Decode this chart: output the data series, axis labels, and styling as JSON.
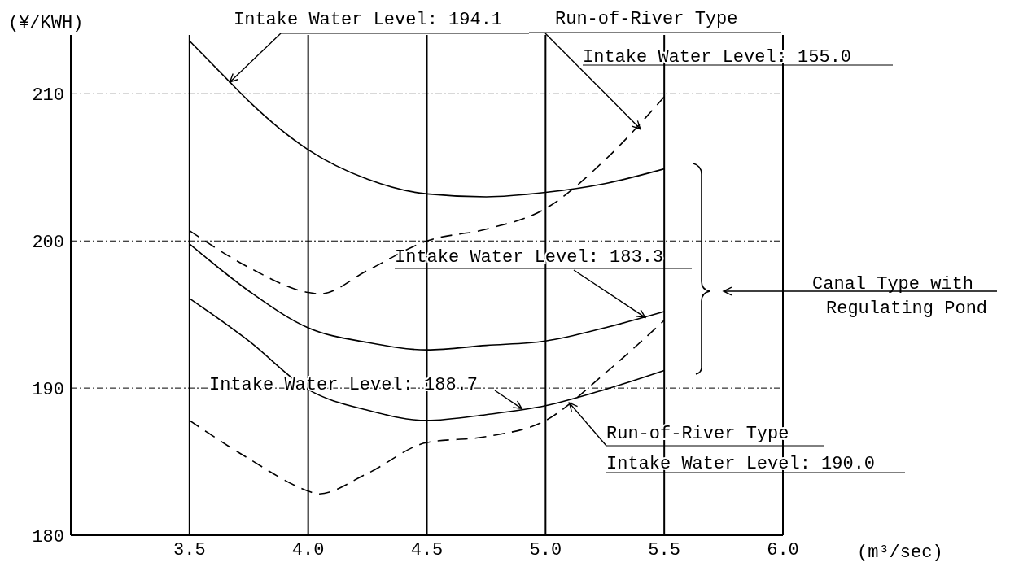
{
  "chart_data": {
    "type": "line",
    "xlabel": "(m³/sec)",
    "ylabel": "(¥/KWH)",
    "xlim": [
      3.0,
      6.0
    ],
    "ylim": [
      180,
      214
    ],
    "xticks": [
      3.5,
      {
        "value": 4,
        "label": "4.0"
      },
      4.5,
      {
        "value": 5,
        "label": "5.0"
      },
      5.5,
      {
        "value": 6,
        "label": "6.0"
      }
    ],
    "yticks": [
      180,
      190,
      200,
      210
    ],
    "grid": true,
    "marker": "none",
    "series": [
      {
        "color": "#000000",
        "line_style": "solid",
        "x": [
          3.5,
          3.67,
          3.75,
          4.0,
          4.25,
          4.5,
          4.75,
          5.0,
          5.25,
          5.5
        ],
        "values": [
          213.6,
          210.8,
          209.5,
          206.2,
          204.2,
          203.2,
          203.0,
          203.3,
          203.9,
          204.9
        ]
      },
      {
        "color": "#000000",
        "line_style": "dashed",
        "x": [
          3.5,
          3.75,
          4.0,
          4.05,
          4.25,
          4.5,
          4.75,
          5.0,
          5.25,
          5.5
        ],
        "values": [
          200.7,
          198.2,
          196.5,
          196.4,
          198.0,
          200.0,
          200.8,
          202.2,
          205.5,
          209.8
        ]
      },
      {
        "color": "#000000",
        "line_style": "solid",
        "x": [
          3.5,
          3.75,
          4.0,
          4.25,
          4.5,
          4.75,
          5.0,
          5.25,
          5.5
        ],
        "values": [
          199.8,
          196.6,
          194.1,
          193.1,
          192.6,
          192.9,
          193.2,
          194.1,
          195.2
        ]
      },
      {
        "color": "#000000",
        "line_style": "solid",
        "x": [
          3.5,
          3.75,
          4.0,
          4.25,
          4.5,
          4.75,
          5.0,
          5.25,
          5.5
        ],
        "values": [
          196.1,
          193.2,
          189.9,
          188.5,
          187.8,
          188.2,
          188.8,
          189.9,
          191.2
        ]
      },
      {
        "color": "#000000",
        "line_style": "dashed",
        "x": [
          3.5,
          3.75,
          4.0,
          4.04,
          4.25,
          4.5,
          4.75,
          5.0,
          5.25,
          5.5
        ],
        "values": [
          187.8,
          185.2,
          183.0,
          182.8,
          184.2,
          186.3,
          186.7,
          187.8,
          191.0,
          194.6
        ]
      }
    ],
    "annotations": [
      {
        "text": "Intake Water Level: 194.1",
        "x": 3.67,
        "y": 210.8
      },
      {
        "text": "Run-of-River Type",
        "x": 5.4,
        "y": 207.6
      },
      "Intake Water Level: 155.0",
      {
        "text": "Intake Water Level: 183.3",
        "x": 5.42,
        "y": 194.8
      },
      {
        "text": "Intake Water Level: 188.7",
        "x": 4.9,
        "y": 188.6
      },
      {
        "text": "Run-of-River Type",
        "x": 5.1,
        "y": 189.0
      },
      "Intake Water Level: 190.0",
      "Canal Type with\nRegulating Pond"
    ]
  }
}
